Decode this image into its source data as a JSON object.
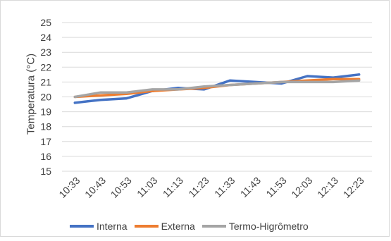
{
  "chart_data": {
    "type": "line",
    "title": "",
    "xlabel": "",
    "ylabel": "Temperatura (°C)",
    "ylim": [
      15,
      25
    ],
    "yticks": [
      15,
      16,
      17,
      18,
      19,
      20,
      21,
      22,
      23,
      24,
      25
    ],
    "grid": true,
    "legend_position": "bottom",
    "categories": [
      "10:33",
      "10:43",
      "10:53",
      "11:03",
      "11:13",
      "11:23",
      "11:33",
      "11:43",
      "11:53",
      "12:03",
      "12:13",
      "12:23"
    ],
    "series": [
      {
        "name": "Interna",
        "color": "#4472c4",
        "values": [
          19.6,
          19.8,
          19.9,
          20.4,
          20.6,
          20.5,
          21.1,
          21.0,
          20.9,
          21.4,
          21.3,
          21.5
        ]
      },
      {
        "name": "Externa",
        "color": "#ed7d31",
        "values": [
          20.0,
          20.1,
          20.2,
          20.4,
          20.5,
          20.6,
          20.8,
          20.9,
          21.0,
          21.1,
          21.2,
          21.2
        ]
      },
      {
        "name": "Termo-Higrômetro",
        "color": "#a5a5a5",
        "values": [
          20.0,
          20.3,
          20.3,
          20.5,
          20.5,
          20.7,
          20.8,
          20.9,
          21.0,
          21.0,
          21.0,
          21.1
        ]
      }
    ]
  }
}
